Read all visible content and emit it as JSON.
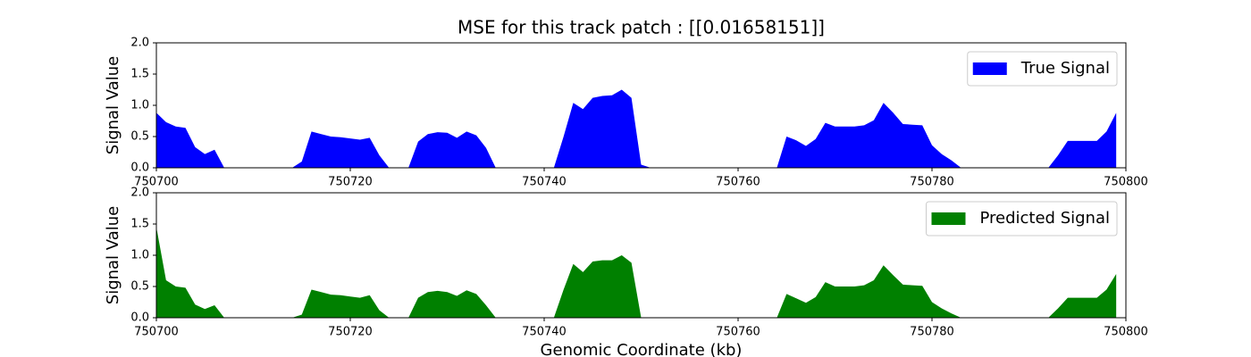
{
  "chart_data": [
    {
      "type": "area",
      "title": "MSE for this track patch : [[0.01658151]]",
      "ylabel": "Signal Value",
      "x": [
        750700,
        750701,
        750702,
        750703,
        750704,
        750705,
        750706,
        750707,
        750708,
        750709,
        750710,
        750711,
        750712,
        750713,
        750714,
        750715,
        750716,
        750717,
        750718,
        750719,
        750720,
        750721,
        750722,
        750723,
        750724,
        750725,
        750726,
        750727,
        750728,
        750729,
        750730,
        750731,
        750732,
        750733,
        750734,
        750735,
        750736,
        750737,
        750738,
        750739,
        750740,
        750741,
        750742,
        750743,
        750744,
        750745,
        750746,
        750747,
        750748,
        750749,
        750750,
        750751,
        750752,
        750753,
        750754,
        750755,
        750756,
        750757,
        750758,
        750759,
        750760,
        750761,
        750762,
        750763,
        750764,
        750765,
        750766,
        750767,
        750768,
        750769,
        750770,
        750771,
        750772,
        750773,
        750774,
        750775,
        750776,
        750777,
        750778,
        750779,
        750780,
        750781,
        750782,
        750783,
        750784,
        750785,
        750786,
        750787,
        750788,
        750789,
        750790,
        750791,
        750792,
        750793,
        750794,
        750795,
        750796,
        750797,
        750798,
        750799
      ],
      "series": [
        {
          "name": "True Signal",
          "color": "#0000ff",
          "values": [
            0.88,
            0.73,
            0.66,
            0.64,
            0.33,
            0.22,
            0.29,
            0,
            0,
            0,
            0,
            0,
            0,
            0,
            0,
            0.1,
            0.58,
            0.54,
            0.5,
            0.49,
            0.47,
            0.45,
            0.48,
            0.2,
            0,
            0,
            0,
            0.42,
            0.54,
            0.57,
            0.56,
            0.48,
            0.58,
            0.52,
            0.32,
            0,
            0,
            0,
            0,
            0,
            0,
            0,
            0.5,
            1.04,
            0.94,
            1.12,
            1.15,
            1.16,
            1.25,
            1.12,
            0.05,
            0,
            0,
            0,
            0,
            0,
            0,
            0,
            0,
            0,
            0,
            0,
            0,
            0,
            0,
            0.5,
            0.44,
            0.35,
            0.46,
            0.72,
            0.66,
            0.66,
            0.66,
            0.68,
            0.76,
            1.04,
            0.88,
            0.7,
            0.69,
            0.68,
            0.36,
            0.22,
            0.12,
            0,
            0,
            0,
            0,
            0,
            0,
            0,
            0,
            0,
            0,
            0.2,
            0.43,
            0.43,
            0.43,
            0.43,
            0.58,
            0.88
          ]
        }
      ],
      "xlim": [
        750700,
        750800
      ],
      "xticks": [
        750700,
        750720,
        750740,
        750760,
        750780,
        750800
      ],
      "ylim": [
        0,
        2
      ],
      "yticks": [
        {
          "value": 0,
          "label": "0.0"
        },
        {
          "value": 0.5,
          "label": "0.5"
        },
        {
          "value": 1,
          "label": "1.0"
        },
        {
          "value": 1.5,
          "label": "1.5"
        },
        {
          "value": 2,
          "label": "2.0"
        }
      ],
      "legend": "upper right"
    },
    {
      "type": "area",
      "ylabel": "Signal Value",
      "xlabel": "Genomic Coordinate (kb)",
      "x": [
        750700,
        750701,
        750702,
        750703,
        750704,
        750705,
        750706,
        750707,
        750708,
        750709,
        750710,
        750711,
        750712,
        750713,
        750714,
        750715,
        750716,
        750717,
        750718,
        750719,
        750720,
        750721,
        750722,
        750723,
        750724,
        750725,
        750726,
        750727,
        750728,
        750729,
        750730,
        750731,
        750732,
        750733,
        750734,
        750735,
        750736,
        750737,
        750738,
        750739,
        750740,
        750741,
        750742,
        750743,
        750744,
        750745,
        750746,
        750747,
        750748,
        750749,
        750750,
        750751,
        750752,
        750753,
        750754,
        750755,
        750756,
        750757,
        750758,
        750759,
        750760,
        750761,
        750762,
        750763,
        750764,
        750765,
        750766,
        750767,
        750768,
        750769,
        750770,
        750771,
        750772,
        750773,
        750774,
        750775,
        750776,
        750777,
        750778,
        750779,
        750780,
        750781,
        750782,
        750783,
        750784,
        750785,
        750786,
        750787,
        750788,
        750789,
        750790,
        750791,
        750792,
        750793,
        750794,
        750795,
        750796,
        750797,
        750798,
        750799
      ],
      "series": [
        {
          "name": "Predicted Signal",
          "color": "#008000",
          "values": [
            1.45,
            0.6,
            0.5,
            0.48,
            0.21,
            0.14,
            0.2,
            0,
            0,
            0,
            0,
            0,
            0,
            0,
            0,
            0.05,
            0.45,
            0.41,
            0.37,
            0.36,
            0.34,
            0.32,
            0.36,
            0.12,
            0,
            0,
            0,
            0.32,
            0.41,
            0.43,
            0.41,
            0.35,
            0.44,
            0.38,
            0.2,
            0,
            0,
            0,
            0,
            0,
            0,
            0,
            0.45,
            0.86,
            0.73,
            0.9,
            0.92,
            0.92,
            1.0,
            0.88,
            0,
            0,
            0,
            0,
            0,
            0,
            0,
            0,
            0,
            0,
            0,
            0,
            0,
            0,
            0,
            0.38,
            0.31,
            0.24,
            0.33,
            0.57,
            0.5,
            0.5,
            0.5,
            0.52,
            0.6,
            0.84,
            0.68,
            0.53,
            0.52,
            0.51,
            0.25,
            0.15,
            0.07,
            0,
            0,
            0,
            0,
            0,
            0,
            0,
            0,
            0,
            0,
            0.15,
            0.32,
            0.32,
            0.32,
            0.32,
            0.45,
            0.7
          ]
        }
      ],
      "xlim": [
        750700,
        750800
      ],
      "xticks": [
        750700,
        750720,
        750740,
        750760,
        750780,
        750800
      ],
      "ylim": [
        0,
        2
      ],
      "yticks": [
        {
          "value": 0,
          "label": "0.0"
        },
        {
          "value": 0.5,
          "label": "0.5"
        },
        {
          "value": 1,
          "label": "1.0"
        },
        {
          "value": 1.5,
          "label": "1.5"
        },
        {
          "value": 2,
          "label": "2.0"
        }
      ],
      "legend": "upper right"
    }
  ]
}
